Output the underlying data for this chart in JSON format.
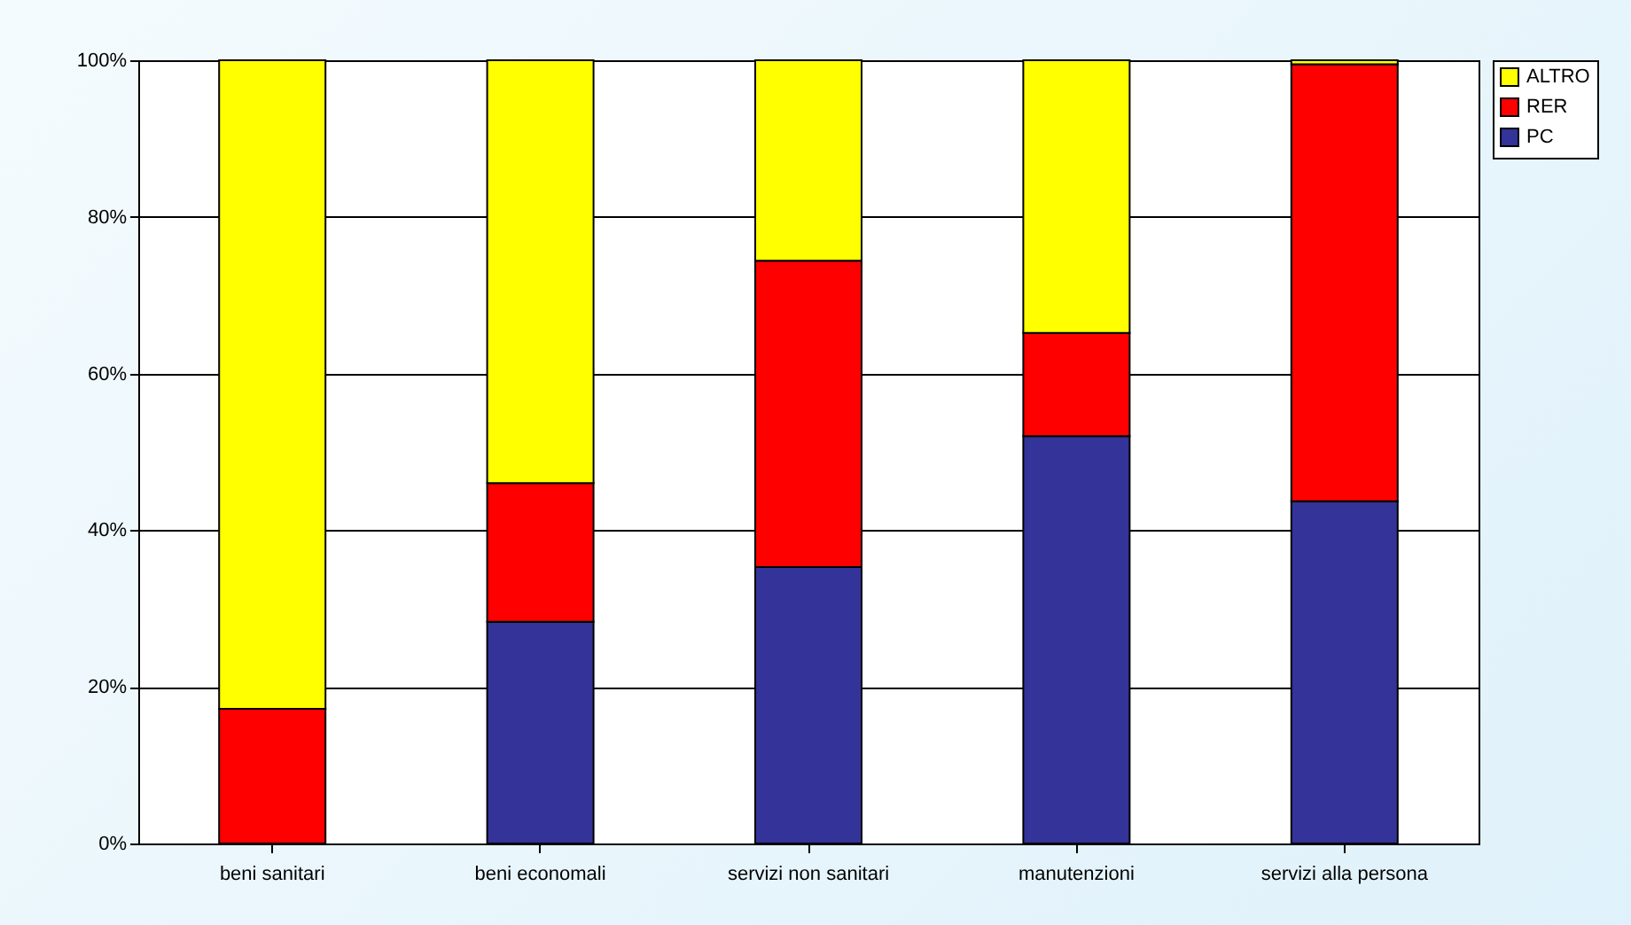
{
  "chart_data": {
    "type": "bar",
    "stacked": true,
    "categories": [
      "beni sanitari",
      "beni economali",
      "servizi non sanitari",
      "manutenzioni",
      "servizi alla persona"
    ],
    "series": [
      {
        "name": "PC",
        "color": "#333399",
        "values": [
          0,
          28.3,
          35.3,
          52,
          43.7
        ]
      },
      {
        "name": "RER",
        "color": "#ff0000",
        "values": [
          17.2,
          17.7,
          39.1,
          13.2,
          55.8
        ]
      },
      {
        "name": "ALTRO",
        "color": "#ffff00",
        "values": [
          82.8,
          54,
          25.6,
          34.8,
          0.5
        ]
      }
    ],
    "ylim": [
      0,
      100
    ],
    "yticks": [
      {
        "value": 0,
        "label": "0%"
      },
      {
        "value": 20,
        "label": "20%"
      },
      {
        "value": 40,
        "label": "40%"
      },
      {
        "value": 60,
        "label": "60%"
      },
      {
        "value": 80,
        "label": "80%"
      },
      {
        "value": 100,
        "label": "100%"
      }
    ],
    "grid": "y",
    "legend": "right"
  }
}
